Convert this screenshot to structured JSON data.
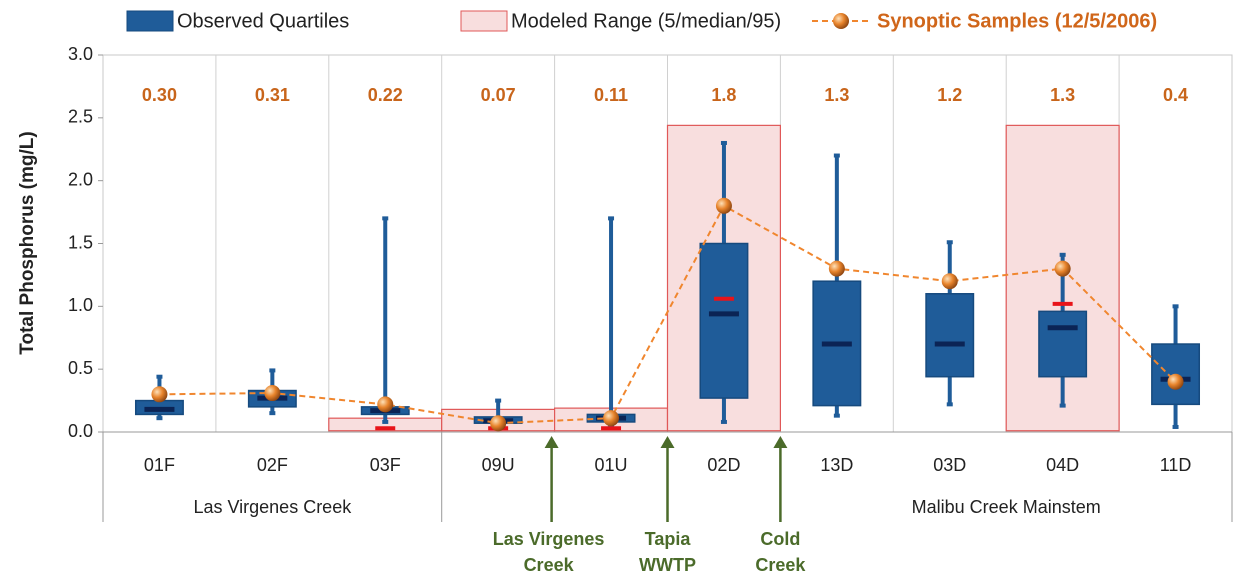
{
  "chart_data": {
    "type": "box",
    "ylabel": "Total Phosphorus (mg/L)",
    "categories": [
      "01F",
      "02F",
      "03F",
      "09U",
      "01U",
      "02D",
      "13D",
      "03D",
      "04D",
      "11D"
    ],
    "groups": [
      "Las Virgenes Creek",
      "Malibu Creek Mainstem"
    ],
    "annotations": [
      [
        "Las Virgenes",
        "Creek"
      ],
      [
        "Tapia",
        "WWTP"
      ],
      [
        "Cold",
        "Creek"
      ]
    ],
    "ylim": [
      0,
      3
    ],
    "yticks": [
      {
        "value": 0,
        "label": "0.0"
      },
      0.5,
      {
        "value": 1,
        "label": "1.0"
      },
      1.5,
      {
        "value": 2,
        "label": "2.0"
      },
      2.5,
      {
        "value": 3,
        "label": "3.0"
      }
    ],
    "series": [
      {
        "name": "Observed Quartiles",
        "color": "#1f5c99",
        "min": [
          0.11,
          0.15,
          0.08,
          0.04,
          0.06,
          0.08,
          0.13,
          0.22,
          0.21,
          0.04
        ],
        "q1": [
          0.14,
          0.2,
          0.14,
          0.07,
          0.08,
          0.27,
          0.21,
          0.44,
          0.44,
          0.22
        ],
        "median": [
          0.18,
          0.27,
          0.17,
          0.09,
          0.11,
          0.94,
          0.7,
          0.7,
          0.83,
          0.42
        ],
        "q3": [
          0.25,
          0.33,
          0.2,
          0.12,
          0.14,
          1.5,
          1.2,
          1.1,
          0.96,
          0.7
        ],
        "max": [
          0.44,
          0.49,
          1.7,
          0.25,
          1.7,
          2.3,
          2.2,
          1.51,
          1.41,
          1.0
        ]
      },
      {
        "name": "Modeled Range (5/median/95)",
        "color": "#e05858",
        "low": [
          null,
          null,
          0.01,
          0.01,
          0.01,
          0.01,
          null,
          null,
          0.01,
          null
        ],
        "median": [
          null,
          null,
          0.03,
          0.03,
          0.03,
          1.06,
          null,
          null,
          1.02,
          null
        ],
        "high": [
          null,
          null,
          0.11,
          0.18,
          0.19,
          2.44,
          null,
          null,
          2.44,
          null
        ]
      },
      {
        "name": "Synoptic Samples (12/5/2006)",
        "color": "#f0862e",
        "values": [
          0.3,
          0.31,
          0.22,
          0.07,
          0.11,
          1.8,
          1.3,
          1.2,
          1.3,
          0.4
        ],
        "value_labels": [
          "0.30",
          "0.31",
          "0.22",
          "0.07",
          "0.11",
          "1.8",
          "1.3",
          "1.2",
          "1.3",
          "0.4"
        ]
      }
    ]
  }
}
